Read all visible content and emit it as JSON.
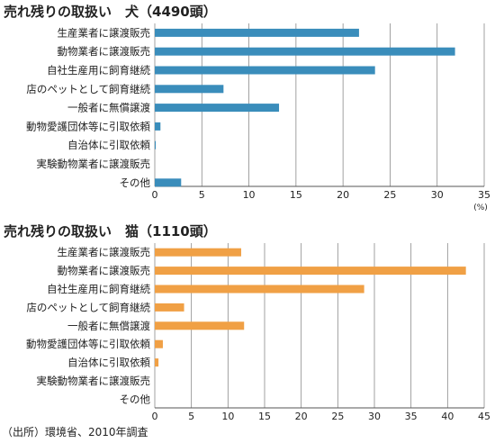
{
  "chart_data": [
    {
      "type": "bar",
      "orientation": "horizontal",
      "title": "売れ残りの取扱い　犬（4490頭）",
      "categories": [
        "生産業者に譲渡販売",
        "動物業者に譲渡販売",
        "自社生産用に飼育継続",
        "店のペットとして飼育継続",
        "一般者に無償譲渡",
        "動物愛護団体等に引取依頼",
        "自治体に引取依頼",
        "実験動物業者に譲渡販売",
        "その他"
      ],
      "values": [
        21.7,
        31.9,
        23.4,
        7.3,
        13.2,
        0.6,
        0.1,
        0.0,
        2.8
      ],
      "xlim": [
        0,
        35
      ],
      "xticks": [
        "0",
        "5",
        "10",
        "15",
        "20",
        "25",
        "30",
        "35"
      ],
      "unit": "(%)",
      "grid": true,
      "color": "#3a8dbb"
    },
    {
      "type": "bar",
      "orientation": "horizontal",
      "title": "売れ残りの取扱い　猫（1110頭）",
      "categories": [
        "生産業者に譲渡販売",
        "動物業者に譲渡販売",
        "自社生産用に飼育継続",
        "店のペットとして飼育継続",
        "一般者に無償譲渡",
        "動物愛護団体等に引取依頼",
        "自治体に引取依頼",
        "実験動物業者に譲渡販売",
        "その他"
      ],
      "values": [
        11.8,
        42.5,
        28.6,
        4.0,
        12.2,
        1.1,
        0.5,
        0.0,
        0.0
      ],
      "xlim": [
        0,
        45
      ],
      "xticks": [
        "0",
        "5",
        "10",
        "15",
        "20",
        "25",
        "30",
        "35",
        "40",
        "45"
      ],
      "unit": "(%)",
      "grid": true,
      "color": "#f0a045"
    }
  ],
  "source": "（出所）環境省、2010年調査"
}
